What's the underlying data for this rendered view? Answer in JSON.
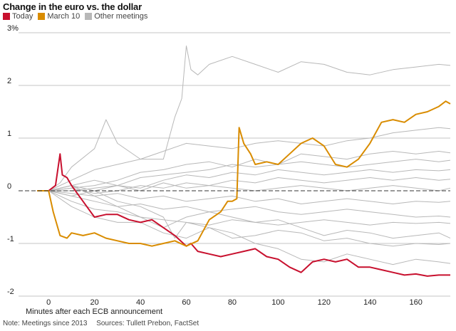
{
  "title": "Change in the euro vs. the dollar",
  "legend": [
    {
      "label": "Today",
      "color": "#c8102e"
    },
    {
      "label": "March 10",
      "color": "#d98c00"
    },
    {
      "label": "Other meetings",
      "color": "#b8b8b8"
    }
  ],
  "note": {
    "meetings": "Note: Meetings since 2013",
    "sources": "Sources: Tullett Prebon, FactSet"
  },
  "chart_data": {
    "type": "line",
    "title": "Change in the euro vs. the dollar",
    "xlabel": "Minutes after each ECB announcement",
    "ylabel": "",
    "xlim": [
      -10,
      175
    ],
    "ylim": [
      -2,
      3
    ],
    "x_ticks": [
      0,
      20,
      40,
      60,
      80,
      100,
      120,
      140,
      160
    ],
    "y_ticks": [
      {
        "value": -2,
        "label": "-2"
      },
      {
        "value": -1,
        "label": "-1"
      },
      {
        "value": 0,
        "label": "0"
      },
      {
        "value": 1,
        "label": "1"
      },
      {
        "value": 2,
        "label": "2"
      },
      {
        "value": 3,
        "label": "3%"
      }
    ],
    "grid": true,
    "legend_position": "top-left",
    "series": [
      {
        "name": "Other meetings",
        "color": "#b8b8b8",
        "width": 1,
        "x": [
          -5,
          0,
          5,
          10,
          20,
          25,
          30,
          40,
          50,
          55,
          58,
          60,
          62,
          65,
          70,
          80,
          90,
          100,
          110,
          120,
          130,
          140,
          150,
          160,
          170,
          175
        ],
        "y": [
          0,
          0,
          0.15,
          0.45,
          0.8,
          1.35,
          0.9,
          0.6,
          0.6,
          1.4,
          1.75,
          2.75,
          2.3,
          2.2,
          2.4,
          2.55,
          2.4,
          2.25,
          2.45,
          2.4,
          2.25,
          2.2,
          2.3,
          2.35,
          2.4,
          2.38
        ]
      },
      {
        "name": "Other meetings",
        "color": "#b8b8b8",
        "width": 1,
        "x": [
          -5,
          0,
          10,
          20,
          30,
          40,
          50,
          60,
          70,
          80,
          90,
          100,
          110,
          120,
          130,
          140,
          150,
          160,
          170,
          175
        ],
        "y": [
          0,
          0,
          0.1,
          -0.1,
          -0.3,
          -0.5,
          -0.7,
          -0.5,
          -0.4,
          -0.5,
          -0.6,
          -0.55,
          -0.7,
          -0.85,
          -0.75,
          -0.8,
          -0.9,
          -0.85,
          -0.8,
          -0.9
        ]
      },
      {
        "name": "Other meetings",
        "color": "#b8b8b8",
        "width": 1,
        "x": [
          -5,
          0,
          10,
          20,
          30,
          40,
          50,
          60,
          70,
          80,
          90,
          100,
          110,
          120,
          130,
          140,
          150,
          160,
          170,
          175
        ],
        "y": [
          0,
          0,
          -0.3,
          -0.5,
          -0.6,
          -0.6,
          -0.8,
          -0.9,
          -0.7,
          -0.8,
          -1.0,
          -1.1,
          -1.3,
          -1.35,
          -1.2,
          -1.3,
          -1.4,
          -1.3,
          -1.35,
          -1.38
        ]
      },
      {
        "name": "Other meetings",
        "color": "#b8b8b8",
        "width": 1,
        "x": [
          -5,
          0,
          10,
          20,
          30,
          40,
          50,
          60,
          70,
          80,
          90,
          100,
          110,
          120,
          130,
          140,
          150,
          160,
          170,
          175
        ],
        "y": [
          0,
          0,
          0.05,
          0.1,
          0.2,
          0.35,
          0.4,
          0.5,
          0.55,
          0.45,
          0.6,
          0.5,
          0.7,
          0.65,
          0.6,
          0.7,
          0.75,
          0.7,
          0.75,
          0.72
        ]
      },
      {
        "name": "Other meetings",
        "color": "#b8b8b8",
        "width": 1,
        "x": [
          -5,
          0,
          10,
          20,
          30,
          40,
          50,
          60,
          70,
          80,
          90,
          100,
          110,
          120,
          130,
          140,
          150,
          160,
          170,
          175
        ],
        "y": [
          0,
          0,
          0.1,
          0.2,
          0.1,
          0.25,
          0.3,
          0.35,
          0.4,
          0.5,
          0.45,
          0.5,
          0.55,
          0.5,
          0.45,
          0.5,
          0.55,
          0.6,
          0.55,
          0.58
        ]
      },
      {
        "name": "Other meetings",
        "color": "#b8b8b8",
        "width": 1,
        "x": [
          -5,
          0,
          10,
          20,
          30,
          40,
          50,
          60,
          70,
          80,
          90,
          100,
          110,
          120,
          130,
          140,
          150,
          160,
          170,
          175
        ],
        "y": [
          0,
          0,
          -0.1,
          0,
          0.1,
          0.05,
          0.2,
          0.3,
          0.25,
          0.35,
          0.3,
          0.4,
          0.35,
          0.3,
          0.35,
          0.4,
          0.35,
          0.4,
          0.38,
          0.4
        ]
      },
      {
        "name": "Other meetings",
        "color": "#b8b8b8",
        "width": 1,
        "x": [
          -5,
          0,
          10,
          20,
          30,
          40,
          50,
          60,
          70,
          80,
          90,
          100,
          110,
          120,
          130,
          140,
          150,
          160,
          170,
          175
        ],
        "y": [
          0,
          0,
          0.05,
          -0.05,
          0,
          0.1,
          0.05,
          0.15,
          0.1,
          0.2,
          0.15,
          0.25,
          0.2,
          0.15,
          0.2,
          0.25,
          0.2,
          0.25,
          0.2,
          0.22
        ]
      },
      {
        "name": "Other meetings",
        "color": "#b8b8b8",
        "width": 1,
        "x": [
          -5,
          0,
          10,
          20,
          30,
          40,
          50,
          60,
          70,
          80,
          90,
          100,
          110,
          120,
          130,
          140,
          150,
          160,
          170,
          175
        ],
        "y": [
          0,
          0,
          -0.05,
          -0.1,
          -0.05,
          -0.15,
          -0.1,
          -0.2,
          -0.15,
          -0.1,
          -0.2,
          -0.15,
          -0.25,
          -0.2,
          -0.15,
          -0.2,
          -0.25,
          -0.2,
          -0.22,
          -0.2
        ]
      },
      {
        "name": "Other meetings",
        "color": "#b8b8b8",
        "width": 1,
        "x": [
          -5,
          0,
          10,
          20,
          30,
          40,
          50,
          60,
          70,
          80,
          90,
          100,
          110,
          120,
          130,
          140,
          150,
          160,
          170,
          175
        ],
        "y": [
          0,
          0,
          -0.1,
          -0.2,
          -0.3,
          -0.25,
          -0.35,
          -0.3,
          -0.4,
          -0.35,
          -0.3,
          -0.4,
          -0.45,
          -0.4,
          -0.35,
          -0.4,
          -0.45,
          -0.5,
          -0.48,
          -0.5
        ]
      },
      {
        "name": "Other meetings",
        "color": "#b8b8b8",
        "width": 1,
        "x": [
          -5,
          0,
          10,
          20,
          30,
          40,
          50,
          55,
          60,
          70,
          80,
          90,
          100,
          110,
          120,
          130,
          140,
          150,
          160,
          170,
          175
        ],
        "y": [
          0,
          0,
          0.1,
          0,
          -0.2,
          -0.3,
          -0.5,
          -0.9,
          -0.6,
          -0.7,
          -0.9,
          -0.85,
          -0.75,
          -0.8,
          -0.95,
          -0.9,
          -1.0,
          -1.05,
          -1.0,
          -1.02,
          -1.0
        ]
      },
      {
        "name": "Other meetings",
        "color": "#b8b8b8",
        "width": 1,
        "x": [
          -5,
          0,
          10,
          20,
          30,
          40,
          50,
          60,
          70,
          80,
          90,
          100,
          110,
          120,
          130,
          140,
          150,
          160,
          170,
          175
        ],
        "y": [
          0,
          0,
          0.2,
          0.4,
          0.5,
          0.6,
          0.75,
          0.9,
          0.85,
          0.8,
          0.9,
          0.95,
          0.9,
          0.85,
          0.95,
          1.0,
          1.1,
          1.15,
          1.2,
          1.18
        ]
      },
      {
        "name": "Other meetings",
        "color": "#b8b8b8",
        "width": 1,
        "x": [
          -5,
          0,
          10,
          20,
          30,
          40,
          50,
          60,
          70,
          80,
          90,
          100,
          110,
          120,
          130,
          140,
          150,
          160,
          170,
          175
        ],
        "y": [
          0,
          0,
          0,
          0.05,
          0.1,
          0,
          0.15,
          0.05,
          0.1,
          0.05,
          0,
          0.05,
          0.1,
          0.05,
          0,
          0.05,
          0.1,
          0.05,
          0,
          0.05
        ]
      },
      {
        "name": "Other meetings",
        "color": "#b8b8b8",
        "width": 1,
        "x": [
          -5,
          0,
          10,
          20,
          30,
          40,
          50,
          60,
          70,
          80,
          90,
          100,
          110,
          120,
          130,
          140,
          150,
          160,
          170,
          175
        ],
        "y": [
          0,
          0,
          -0.2,
          -0.35,
          -0.4,
          -0.5,
          -0.55,
          -0.6,
          -0.65,
          -0.55,
          -0.6,
          -0.65,
          -0.6,
          -0.55,
          -0.6,
          -0.65,
          -0.6,
          -0.62,
          -0.6,
          -0.62
        ]
      },
      {
        "name": "Today",
        "color": "#c8102e",
        "width": 2,
        "x": [
          -5,
          0,
          3,
          5,
          6,
          8,
          10,
          15,
          20,
          25,
          30,
          35,
          40,
          45,
          50,
          55,
          60,
          62,
          65,
          70,
          75,
          80,
          85,
          90,
          95,
          100,
          105,
          110,
          115,
          120,
          125,
          130,
          135,
          140,
          145,
          150,
          155,
          160,
          165,
          170,
          175
        ],
        "y": [
          0,
          0,
          0.1,
          0.7,
          0.3,
          0.25,
          0.1,
          -0.2,
          -0.5,
          -0.45,
          -0.45,
          -0.55,
          -0.6,
          -0.55,
          -0.7,
          -0.85,
          -1.05,
          -1.0,
          -1.15,
          -1.2,
          -1.25,
          -1.2,
          -1.15,
          -1.1,
          -1.25,
          -1.3,
          -1.45,
          -1.55,
          -1.35,
          -1.3,
          -1.35,
          -1.3,
          -1.45,
          -1.45,
          -1.5,
          -1.55,
          -1.6,
          -1.58,
          -1.62,
          -1.6,
          -1.6
        ]
      },
      {
        "name": "March 10",
        "color": "#d98c00",
        "width": 2,
        "x": [
          -5,
          0,
          2,
          5,
          8,
          10,
          15,
          20,
          25,
          30,
          35,
          40,
          45,
          50,
          55,
          60,
          65,
          70,
          75,
          78,
          80,
          82,
          83,
          85,
          88,
          90,
          95,
          100,
          105,
          110,
          115,
          120,
          125,
          130,
          135,
          140,
          145,
          150,
          155,
          160,
          165,
          170,
          173,
          175
        ],
        "y": [
          0,
          0,
          -0.4,
          -0.85,
          -0.9,
          -0.8,
          -0.85,
          -0.8,
          -0.9,
          -0.95,
          -1.0,
          -1.0,
          -1.05,
          -1.0,
          -0.95,
          -1.05,
          -0.95,
          -0.55,
          -0.4,
          -0.2,
          -0.2,
          -0.15,
          1.2,
          0.9,
          0.7,
          0.5,
          0.55,
          0.5,
          0.7,
          0.9,
          1.0,
          0.85,
          0.5,
          0.45,
          0.6,
          0.9,
          1.3,
          1.35,
          1.3,
          1.45,
          1.5,
          1.6,
          1.7,
          1.65
        ]
      }
    ]
  }
}
